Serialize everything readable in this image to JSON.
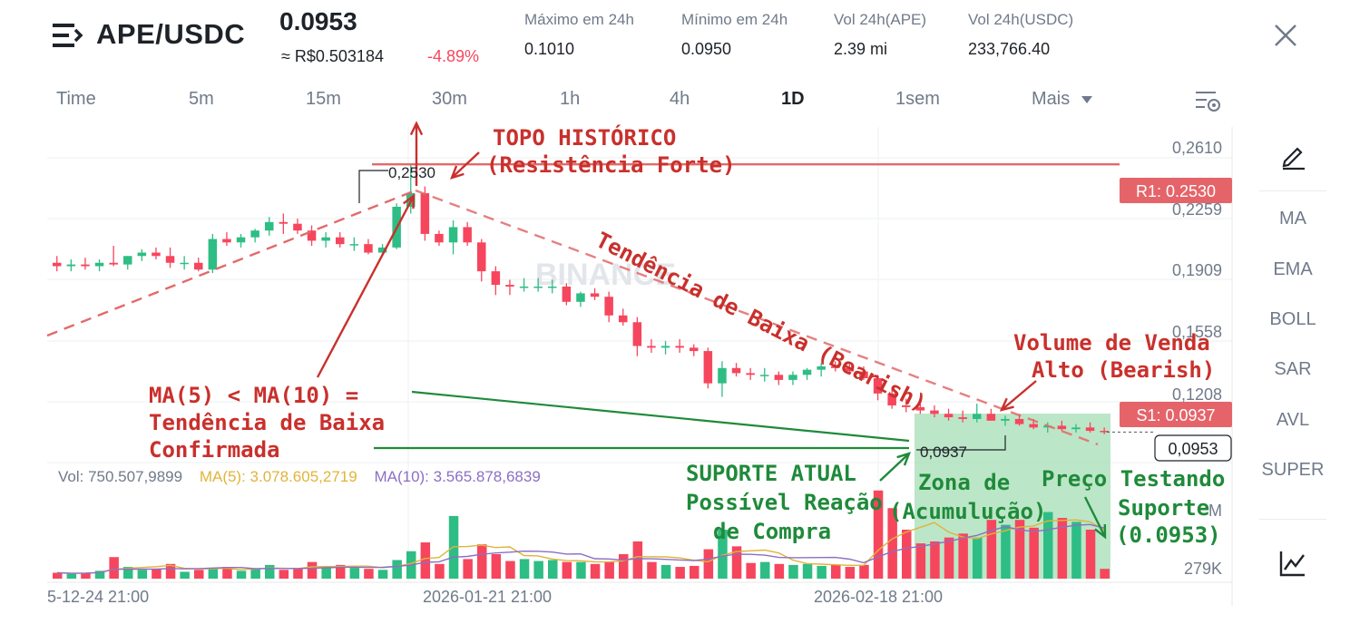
{
  "header": {
    "pair": "APE/USDC",
    "price": "0.0953",
    "price_brl": "≈ R$0.503184",
    "change": "-4.89%",
    "stats": [
      {
        "label": "Máximo em 24h",
        "value": "0.1010"
      },
      {
        "label": "Mínimo em 24h",
        "value": "0.0950"
      },
      {
        "label": "Vol 24h(APE)",
        "value": "2.39 mi"
      },
      {
        "label": "Vol 24h(USDC)",
        "value": "233,766.40"
      }
    ]
  },
  "intervals": [
    "Time",
    "5m",
    "15m",
    "30m",
    "1h",
    "4h",
    "1D",
    "1sem",
    "Mais"
  ],
  "active_interval": "1D",
  "side_indicators": [
    "MA",
    "EMA",
    "BOLL",
    "SAR",
    "AVL",
    "SUPER"
  ],
  "volume_legend": {
    "vol": "Vol: 750.507,9899",
    "ma5": "MA(5): 3.078.605,2719",
    "ma10": "MA(10): 3.565.878,6839"
  },
  "colors": {
    "up": "#2ebd85",
    "down": "#f6465d",
    "ma5": "#e0b43a",
    "ma10": "#8c6fc4",
    "annotation_red": "#c9302c",
    "annotation_green": "#1f8a3a",
    "resistance_line": "#e26a6a",
    "zone_fill": "#9fdcb0"
  },
  "watermark": "BINANCE",
  "chart_data": {
    "type": "candlestick",
    "y_axis_ticks": [
      "0,2610",
      "0,2259",
      "0,1909",
      "0,1558",
      "0,1208",
      "0,0953"
    ],
    "y_range": [
      0.08,
      0.275
    ],
    "volume_axis_ticks": [
      "279K",
      "M"
    ],
    "x_axis_ticks": [
      "5-12-24 21:00",
      "2026-01-21 21:00",
      "2026-02-18 21:00"
    ],
    "candles": [
      {
        "o": 0.195,
        "h": 0.199,
        "l": 0.19,
        "c": 0.193
      },
      {
        "o": 0.193,
        "h": 0.197,
        "l": 0.19,
        "c": 0.194
      },
      {
        "o": 0.194,
        "h": 0.198,
        "l": 0.191,
        "c": 0.193
      },
      {
        "o": 0.193,
        "h": 0.197,
        "l": 0.19,
        "c": 0.195
      },
      {
        "o": 0.195,
        "h": 0.205,
        "l": 0.193,
        "c": 0.194
      },
      {
        "o": 0.194,
        "h": 0.199,
        "l": 0.191,
        "c": 0.199
      },
      {
        "o": 0.199,
        "h": 0.203,
        "l": 0.196,
        "c": 0.201
      },
      {
        "o": 0.201,
        "h": 0.204,
        "l": 0.197,
        "c": 0.199
      },
      {
        "o": 0.199,
        "h": 0.204,
        "l": 0.192,
        "c": 0.195
      },
      {
        "o": 0.195,
        "h": 0.199,
        "l": 0.191,
        "c": 0.195
      },
      {
        "o": 0.195,
        "h": 0.198,
        "l": 0.19,
        "c": 0.191
      },
      {
        "o": 0.191,
        "h": 0.212,
        "l": 0.189,
        "c": 0.209
      },
      {
        "o": 0.209,
        "h": 0.213,
        "l": 0.205,
        "c": 0.207
      },
      {
        "o": 0.207,
        "h": 0.212,
        "l": 0.204,
        "c": 0.21
      },
      {
        "o": 0.21,
        "h": 0.215,
        "l": 0.207,
        "c": 0.214
      },
      {
        "o": 0.214,
        "h": 0.222,
        "l": 0.211,
        "c": 0.219
      },
      {
        "o": 0.219,
        "h": 0.224,
        "l": 0.212,
        "c": 0.218
      },
      {
        "o": 0.218,
        "h": 0.221,
        "l": 0.212,
        "c": 0.214
      },
      {
        "o": 0.214,
        "h": 0.217,
        "l": 0.205,
        "c": 0.208
      },
      {
        "o": 0.208,
        "h": 0.213,
        "l": 0.204,
        "c": 0.21
      },
      {
        "o": 0.21,
        "h": 0.213,
        "l": 0.204,
        "c": 0.206
      },
      {
        "o": 0.206,
        "h": 0.21,
        "l": 0.202,
        "c": 0.206
      },
      {
        "o": 0.206,
        "h": 0.209,
        "l": 0.2,
        "c": 0.201
      },
      {
        "o": 0.201,
        "h": 0.206,
        "l": 0.199,
        "c": 0.204
      },
      {
        "o": 0.204,
        "h": 0.23,
        "l": 0.203,
        "c": 0.228
      },
      {
        "o": 0.228,
        "h": 0.253,
        "l": 0.224,
        "c": 0.236
      },
      {
        "o": 0.236,
        "h": 0.24,
        "l": 0.208,
        "c": 0.212
      },
      {
        "o": 0.212,
        "h": 0.214,
        "l": 0.205,
        "c": 0.207
      },
      {
        "o": 0.207,
        "h": 0.22,
        "l": 0.2,
        "c": 0.216
      },
      {
        "o": 0.216,
        "h": 0.219,
        "l": 0.205,
        "c": 0.207
      },
      {
        "o": 0.207,
        "h": 0.209,
        "l": 0.184,
        "c": 0.19
      },
      {
        "o": 0.19,
        "h": 0.193,
        "l": 0.176,
        "c": 0.182
      },
      {
        "o": 0.182,
        "h": 0.185,
        "l": 0.176,
        "c": 0.181
      },
      {
        "o": 0.181,
        "h": 0.186,
        "l": 0.178,
        "c": 0.181
      },
      {
        "o": 0.181,
        "h": 0.186,
        "l": 0.178,
        "c": 0.181
      },
      {
        "o": 0.181,
        "h": 0.185,
        "l": 0.177,
        "c": 0.181
      },
      {
        "o": 0.181,
        "h": 0.183,
        "l": 0.17,
        "c": 0.172
      },
      {
        "o": 0.172,
        "h": 0.178,
        "l": 0.169,
        "c": 0.177
      },
      {
        "o": 0.177,
        "h": 0.18,
        "l": 0.173,
        "c": 0.175
      },
      {
        "o": 0.175,
        "h": 0.178,
        "l": 0.16,
        "c": 0.164
      },
      {
        "o": 0.164,
        "h": 0.168,
        "l": 0.158,
        "c": 0.16
      },
      {
        "o": 0.16,
        "h": 0.163,
        "l": 0.14,
        "c": 0.146
      },
      {
        "o": 0.146,
        "h": 0.15,
        "l": 0.142,
        "c": 0.145
      },
      {
        "o": 0.145,
        "h": 0.149,
        "l": 0.141,
        "c": 0.146
      },
      {
        "o": 0.146,
        "h": 0.15,
        "l": 0.142,
        "c": 0.145
      },
      {
        "o": 0.145,
        "h": 0.147,
        "l": 0.14,
        "c": 0.143
      },
      {
        "o": 0.143,
        "h": 0.145,
        "l": 0.121,
        "c": 0.124
      },
      {
        "o": 0.124,
        "h": 0.137,
        "l": 0.116,
        "c": 0.133
      },
      {
        "o": 0.133,
        "h": 0.136,
        "l": 0.128,
        "c": 0.13
      },
      {
        "o": 0.13,
        "h": 0.133,
        "l": 0.126,
        "c": 0.129
      },
      {
        "o": 0.129,
        "h": 0.133,
        "l": 0.125,
        "c": 0.129
      },
      {
        "o": 0.129,
        "h": 0.131,
        "l": 0.123,
        "c": 0.126
      },
      {
        "o": 0.126,
        "h": 0.131,
        "l": 0.123,
        "c": 0.129
      },
      {
        "o": 0.129,
        "h": 0.133,
        "l": 0.126,
        "c": 0.132
      },
      {
        "o": 0.132,
        "h": 0.136,
        "l": 0.128,
        "c": 0.134
      },
      {
        "o": 0.134,
        "h": 0.137,
        "l": 0.131,
        "c": 0.133
      },
      {
        "o": 0.133,
        "h": 0.136,
        "l": 0.129,
        "c": 0.131
      },
      {
        "o": 0.131,
        "h": 0.134,
        "l": 0.126,
        "c": 0.127
      },
      {
        "o": 0.127,
        "h": 0.129,
        "l": 0.114,
        "c": 0.118
      },
      {
        "o": 0.118,
        "h": 0.121,
        "l": 0.109,
        "c": 0.111
      },
      {
        "o": 0.111,
        "h": 0.115,
        "l": 0.107,
        "c": 0.11
      },
      {
        "o": 0.11,
        "h": 0.112,
        "l": 0.106,
        "c": 0.108
      },
      {
        "o": 0.108,
        "h": 0.111,
        "l": 0.104,
        "c": 0.106
      },
      {
        "o": 0.106,
        "h": 0.109,
        "l": 0.102,
        "c": 0.104
      },
      {
        "o": 0.104,
        "h": 0.108,
        "l": 0.101,
        "c": 0.103
      },
      {
        "o": 0.103,
        "h": 0.112,
        "l": 0.101,
        "c": 0.106
      },
      {
        "o": 0.106,
        "h": 0.109,
        "l": 0.102,
        "c": 0.102
      },
      {
        "o": 0.102,
        "h": 0.105,
        "l": 0.099,
        "c": 0.103
      },
      {
        "o": 0.103,
        "h": 0.106,
        "l": 0.099,
        "c": 0.1
      },
      {
        "o": 0.1,
        "h": 0.103,
        "l": 0.097,
        "c": 0.098
      },
      {
        "o": 0.098,
        "h": 0.101,
        "l": 0.095,
        "c": 0.099
      },
      {
        "o": 0.099,
        "h": 0.102,
        "l": 0.096,
        "c": 0.097
      },
      {
        "o": 0.097,
        "h": 0.1,
        "l": 0.095,
        "c": 0.098
      },
      {
        "o": 0.098,
        "h": 0.101,
        "l": 0.095,
        "c": 0.096
      },
      {
        "o": 0.096,
        "h": 0.098,
        "l": 0.094,
        "c": 0.0953
      }
    ],
    "volumes": [
      0.06,
      0.05,
      0.06,
      0.08,
      0.22,
      0.12,
      0.09,
      0.1,
      0.15,
      0.07,
      0.09,
      0.1,
      0.12,
      0.08,
      0.1,
      0.14,
      0.09,
      0.1,
      0.17,
      0.12,
      0.14,
      0.11,
      0.1,
      0.09,
      0.19,
      0.28,
      0.37,
      0.15,
      0.64,
      0.2,
      0.35,
      0.25,
      0.18,
      0.2,
      0.18,
      0.19,
      0.17,
      0.17,
      0.15,
      0.17,
      0.25,
      0.38,
      0.17,
      0.14,
      0.12,
      0.13,
      0.3,
      0.5,
      0.33,
      0.16,
      0.17,
      0.15,
      0.14,
      0.15,
      0.13,
      0.14,
      0.12,
      0.14,
      0.9,
      0.72,
      0.5,
      0.36,
      0.38,
      0.42,
      0.46,
      0.42,
      0.6,
      0.55,
      0.6,
      0.52,
      0.68,
      0.62,
      0.58,
      0.5,
      0.1
    ],
    "volume_range": [
      0,
      1.0
    ],
    "levels": [
      {
        "name": "R1",
        "label": "R1: 0.2530",
        "value": 0.253
      },
      {
        "name": "S1",
        "label": "S1: 0.0937",
        "value": 0.0937
      }
    ],
    "current_price": {
      "label": "0,0953",
      "value": 0.0953
    }
  },
  "annotations": {
    "ath_value": "0,2530",
    "support_value": "0,0937",
    "top_title_1": "TOPO HISTÓRICO",
    "top_title_2": "(Resistência Forte)",
    "downtrend": "Tendência de Baixa (Bearish)",
    "ma_1": "MA(5) < MA(10) =",
    "ma_2": "Tendência de Baixa",
    "ma_3": "Confirmada",
    "sell_vol_1": "Volume de Venda",
    "sell_vol_2": "Alto (Bearish)",
    "support_1": "SUPORTE ATUAL",
    "support_2": "Possível Reação",
    "support_3": "de Compra",
    "zone_1": "Zona de",
    "zone_2": "(Acumulução)",
    "test_1": "Preço Testando",
    "test_2": "Suporte",
    "test_3": "(0.0953)"
  }
}
